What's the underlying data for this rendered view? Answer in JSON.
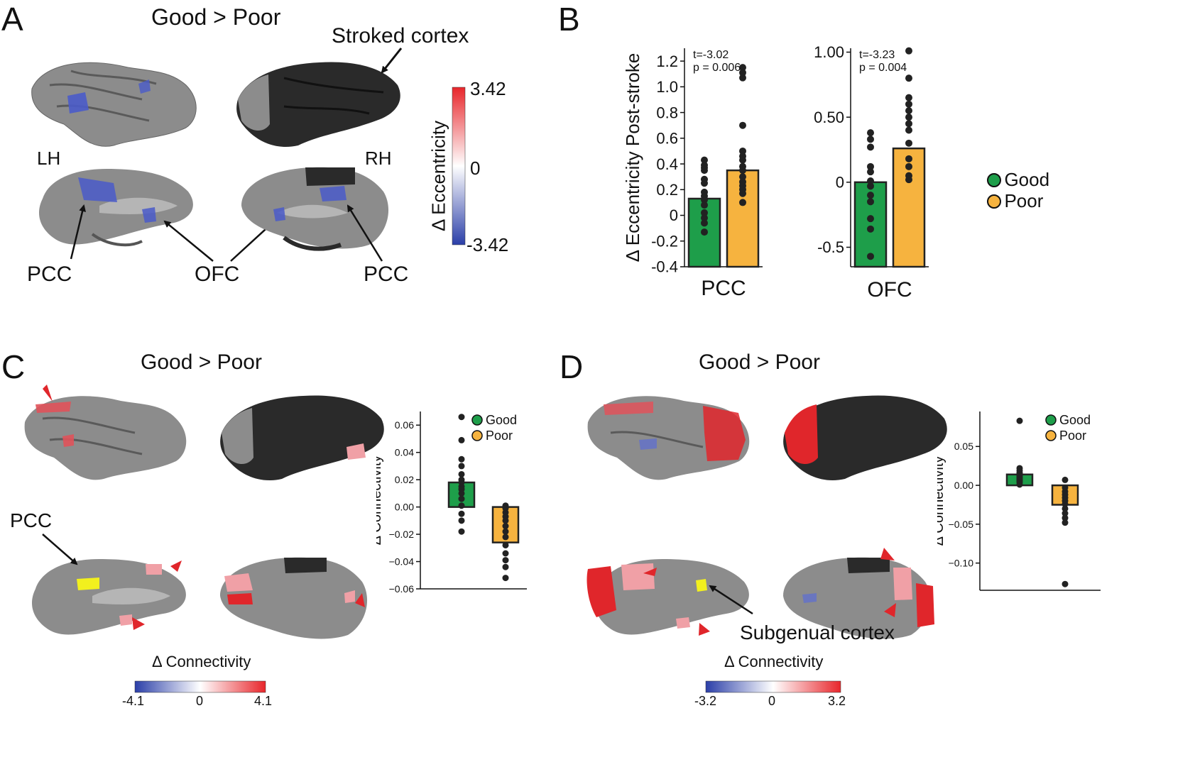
{
  "panels": {
    "A": {
      "label": "A",
      "title": "Good > Poor",
      "stroked_label": "Stroked cortex",
      "lh_label": "LH",
      "rh_label": "RH",
      "pcc_left": "PCC",
      "ofc": "OFC",
      "pcc_right": "PCC",
      "colorbar": {
        "max": "3.42",
        "mid": "0",
        "min": "-3.42",
        "label": "Δ Eccentricity",
        "high_color": "#e8262b",
        "low_color": "#2b3fa8"
      }
    },
    "B": {
      "label": "B",
      "legend": [
        "Good",
        "Poor"
      ]
    },
    "C": {
      "label": "C",
      "title": "Good > Poor",
      "pcc_label": "PCC",
      "colorbar": {
        "min": "-4.1",
        "mid": "0",
        "max": "4.1",
        "label": "Δ Connectivity"
      }
    },
    "D": {
      "label": "D",
      "title": "Good > Poor",
      "subgenual_label": "Subgenual cortex",
      "colorbar": {
        "min": "-3.2",
        "mid": "0",
        "max": "3.2",
        "label": "Δ Connectivity"
      }
    }
  },
  "colors": {
    "good": "#1e9e4a",
    "poor": "#f6b33f",
    "stroke_dark": "#2a2a2a",
    "brain": "#8c8c8c",
    "arrow_red": "#e0262b"
  },
  "chart_data": [
    {
      "id": "B-PCC",
      "type": "bar",
      "categories": [
        "Good",
        "Poor"
      ],
      "values": [
        0.13,
        0.35
      ],
      "points": [
        [
          0.43,
          0.39,
          0.37,
          0.35,
          0.28,
          0.25,
          0.18,
          0.15,
          0.12,
          0.08,
          0.02,
          -0.02,
          -0.06,
          -0.13
        ],
        [
          1.15,
          1.11,
          1.07,
          0.7,
          0.5,
          0.46,
          0.43,
          0.38,
          0.35,
          0.3,
          0.26,
          0.23,
          0.2,
          0.17,
          0.1
        ]
      ],
      "xlabel": "PCC",
      "ylabel": "Δ Eccentricity Post-stroke",
      "ylim": [
        -0.4,
        1.3
      ],
      "yticks": [
        -0.4,
        -0.2,
        0,
        0.2,
        0.4,
        0.6,
        0.8,
        1.0,
        1.2
      ],
      "ytick_labels": [
        "-0.4",
        "-0.2",
        "0",
        "0.2",
        "0.4",
        "0.6",
        "0.8",
        "1.0",
        "1.2"
      ],
      "stats": [
        "t=-3.02",
        "p = 0.006"
      ]
    },
    {
      "id": "B-OFC",
      "type": "bar",
      "categories": [
        "Good",
        "Poor"
      ],
      "values": [
        0.0,
        0.26
      ],
      "points": [
        [
          0.38,
          0.33,
          0.27,
          0.12,
          0.08,
          0.01,
          -0.03,
          -0.1,
          -0.15,
          -0.28,
          -0.36,
          -0.57
        ],
        [
          1.01,
          0.8,
          0.65,
          0.6,
          0.55,
          0.5,
          0.45,
          0.4,
          0.3,
          0.18,
          0.12,
          0.05,
          0.02
        ]
      ],
      "xlabel": "OFC",
      "ylabel": "",
      "ylim": [
        -0.65,
        1.03
      ],
      "yticks": [
        -0.5,
        0,
        0.5,
        1.0
      ],
      "ytick_labels": [
        "-0.5",
        "0",
        "0.50",
        "1.00"
      ],
      "stats": [
        "t=-3.23",
        "p = 0.004"
      ]
    },
    {
      "id": "C-bar",
      "type": "bar",
      "categories": [
        "Good",
        "Poor"
      ],
      "values": [
        0.018,
        -0.026
      ],
      "points": [
        [
          0.066,
          0.049,
          0.035,
          0.03,
          0.024,
          0.02,
          0.018,
          0.015,
          0.013,
          0.01,
          0.006,
          0.001,
          -0.005,
          -0.01,
          -0.018
        ],
        [
          0.001,
          -0.001,
          -0.004,
          -0.007,
          -0.01,
          -0.014,
          -0.018,
          -0.022,
          -0.028,
          -0.034,
          -0.039,
          -0.044,
          -0.052
        ]
      ],
      "xlabel": "",
      "ylabel": "Δ Connectivity",
      "ylim": [
        -0.06,
        0.07
      ],
      "yticks": [
        -0.06,
        -0.04,
        -0.02,
        0,
        0.02,
        0.04,
        0.06
      ],
      "ytick_labels": [
        "−0.06",
        "−0.04",
        "−0.02",
        "0.00",
        "0.02",
        "0.04",
        "0.06"
      ],
      "legend": [
        "Good",
        "Poor"
      ]
    },
    {
      "id": "D-bar",
      "type": "bar",
      "categories": [
        "Good",
        "Poor"
      ],
      "values": [
        0.014,
        -0.025
      ],
      "points": [
        [
          0.083,
          0.022,
          0.019,
          0.016,
          0.014,
          0.012,
          0.01,
          0.008,
          0.006,
          0.004,
          0.001
        ],
        [
          0.007,
          -0.003,
          -0.008,
          -0.012,
          -0.016,
          -0.02,
          -0.024,
          -0.03,
          -0.036,
          -0.042,
          -0.048,
          -0.127
        ]
      ],
      "xlabel": "",
      "ylabel": "Δ Connectivity",
      "ylim": [
        -0.135,
        0.095
      ],
      "yticks": [
        -0.1,
        -0.05,
        0,
        0.05
      ],
      "ytick_labels": [
        "−0.10",
        "−0.05",
        "0.00",
        "0.05"
      ],
      "legend": [
        "Good",
        "Poor"
      ]
    }
  ]
}
